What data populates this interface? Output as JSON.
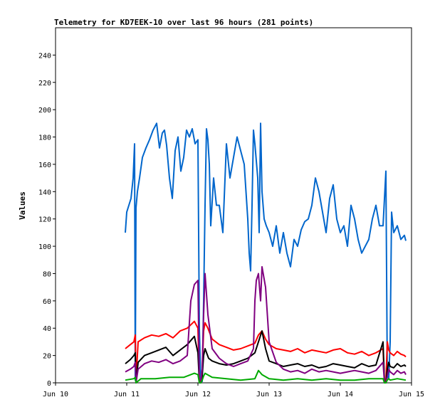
{
  "chart_data": {
    "type": "line",
    "title": "Telemetry for KD7EEK-10 over last 96 hours (281 points)",
    "ylabel": "Values",
    "xlabel": "",
    "ylim": [
      0,
      260
    ],
    "xlim": [
      0,
      5
    ],
    "x_tick_labels": [
      "Jun 10",
      "Jun 11",
      "Jun 12",
      "Jun 13",
      "Jun 14",
      "Jun 15"
    ],
    "y_ticks": [
      0,
      20,
      40,
      60,
      80,
      100,
      120,
      140,
      160,
      180,
      200,
      220,
      240
    ],
    "grid": false,
    "series": [
      {
        "color": "#0066cc",
        "x": [
          0.98,
          1.0,
          1.03,
          1.06,
          1.09,
          1.11,
          1.12,
          1.13,
          1.15,
          1.18,
          1.22,
          1.27,
          1.32,
          1.37,
          1.42,
          1.46,
          1.5,
          1.53,
          1.56,
          1.6,
          1.64,
          1.68,
          1.72,
          1.76,
          1.8,
          1.84,
          1.88,
          1.92,
          1.96,
          2.0,
          2.02,
          2.04,
          2.06,
          2.08,
          2.1,
          2.12,
          2.14,
          2.16,
          2.18,
          2.22,
          2.26,
          2.3,
          2.35,
          2.4,
          2.45,
          2.5,
          2.55,
          2.6,
          2.65,
          2.7,
          2.72,
          2.74,
          2.76,
          2.78,
          2.8,
          2.84,
          2.86,
          2.88,
          2.9,
          2.93,
          2.96,
          3.0,
          3.05,
          3.1,
          3.15,
          3.2,
          3.25,
          3.3,
          3.35,
          3.4,
          3.45,
          3.5,
          3.55,
          3.6,
          3.65,
          3.7,
          3.75,
          3.8,
          3.85,
          3.9,
          3.95,
          4.0,
          4.05,
          4.1,
          4.15,
          4.2,
          4.25,
          4.3,
          4.35,
          4.4,
          4.45,
          4.5,
          4.55,
          4.6,
          4.62,
          4.64,
          4.66,
          4.68,
          4.7,
          4.72,
          4.75,
          4.8,
          4.85,
          4.9,
          4.92
        ],
        "values": [
          110,
          125,
          130,
          135,
          150,
          175,
          2,
          128,
          140,
          150,
          165,
          172,
          178,
          185,
          190,
          172,
          183,
          185,
          174,
          150,
          135,
          170,
          180,
          155,
          165,
          185,
          180,
          186,
          175,
          178,
          40,
          1,
          1,
          60,
          130,
          186,
          178,
          160,
          115,
          150,
          130,
          130,
          110,
          175,
          150,
          165,
          180,
          170,
          160,
          120,
          95,
          82,
          130,
          185,
          175,
          150,
          110,
          190,
          140,
          120,
          115,
          110,
          100,
          115,
          95,
          110,
          95,
          85,
          105,
          100,
          112,
          118,
          120,
          130,
          150,
          140,
          125,
          110,
          135,
          145,
          120,
          110,
          115,
          100,
          130,
          120,
          105,
          95,
          100,
          105,
          120,
          130,
          115,
          115,
          135,
          155,
          5,
          3,
          30,
          125,
          110,
          115,
          105,
          108,
          104
        ]
      },
      {
        "color": "#ff0000",
        "x": [
          0.98,
          1.05,
          1.1,
          1.12,
          1.13,
          1.16,
          1.25,
          1.35,
          1.45,
          1.55,
          1.65,
          1.75,
          1.85,
          1.95,
          2.0,
          2.02,
          2.04,
          2.06,
          2.08,
          2.1,
          2.14,
          2.2,
          2.3,
          2.4,
          2.5,
          2.6,
          2.7,
          2.8,
          2.85,
          2.9,
          2.95,
          3.0,
          3.1,
          3.2,
          3.3,
          3.4,
          3.5,
          3.6,
          3.7,
          3.8,
          3.9,
          4.0,
          4.1,
          4.2,
          4.3,
          4.4,
          4.5,
          4.6,
          4.62,
          4.64,
          4.66,
          4.68,
          4.7,
          4.75,
          4.8,
          4.85,
          4.9,
          4.92
        ],
        "values": [
          25,
          28,
          30,
          35,
          1,
          30,
          33,
          35,
          34,
          36,
          33,
          38,
          40,
          45,
          40,
          1,
          1,
          10,
          38,
          44,
          40,
          32,
          28,
          26,
          24,
          25,
          27,
          29,
          35,
          38,
          32,
          28,
          25,
          24,
          23,
          25,
          22,
          24,
          23,
          22,
          24,
          25,
          22,
          21,
          23,
          20,
          22,
          25,
          1,
          1,
          30,
          24,
          22,
          20,
          23,
          21,
          20,
          19
        ]
      },
      {
        "color": "#000000",
        "x": [
          0.98,
          1.05,
          1.1,
          1.12,
          1.13,
          1.16,
          1.25,
          1.35,
          1.45,
          1.55,
          1.65,
          1.75,
          1.85,
          1.95,
          2.0,
          2.02,
          2.04,
          2.06,
          2.08,
          2.1,
          2.15,
          2.2,
          2.3,
          2.4,
          2.5,
          2.6,
          2.7,
          2.8,
          2.85,
          2.9,
          2.95,
          3.0,
          3.1,
          3.2,
          3.3,
          3.4,
          3.5,
          3.6,
          3.7,
          3.8,
          3.9,
          4.0,
          4.1,
          4.2,
          4.3,
          4.4,
          4.5,
          4.6,
          4.62,
          4.64,
          4.66,
          4.68,
          4.7,
          4.75,
          4.8,
          4.85,
          4.9,
          4.92
        ],
        "values": [
          14,
          17,
          20,
          22,
          0,
          15,
          20,
          22,
          24,
          26,
          20,
          24,
          28,
          34,
          22,
          0,
          0,
          5,
          20,
          25,
          18,
          16,
          14,
          13,
          14,
          16,
          18,
          22,
          30,
          38,
          25,
          16,
          14,
          12,
          13,
          14,
          12,
          13,
          11,
          12,
          14,
          13,
          12,
          11,
          14,
          12,
          13,
          30,
          0,
          0,
          10,
          15,
          12,
          11,
          14,
          12,
          13,
          12
        ]
      },
      {
        "color": "#800080",
        "x": [
          0.98,
          1.05,
          1.1,
          1.12,
          1.13,
          1.16,
          1.25,
          1.35,
          1.45,
          1.55,
          1.65,
          1.75,
          1.85,
          1.9,
          1.95,
          2.0,
          2.02,
          2.04,
          2.06,
          2.08,
          2.1,
          2.14,
          2.2,
          2.3,
          2.4,
          2.5,
          2.6,
          2.7,
          2.78,
          2.8,
          2.82,
          2.85,
          2.88,
          2.9,
          2.95,
          3.0,
          3.1,
          3.2,
          3.3,
          3.4,
          3.5,
          3.6,
          3.7,
          3.8,
          3.9,
          4.0,
          4.1,
          4.2,
          4.3,
          4.4,
          4.5,
          4.6,
          4.62,
          4.64,
          4.66,
          4.68,
          4.7,
          4.75,
          4.8,
          4.85,
          4.9,
          4.92
        ],
        "values": [
          8,
          10,
          12,
          15,
          0,
          10,
          14,
          16,
          15,
          17,
          14,
          16,
          20,
          60,
          72,
          75,
          0,
          0,
          10,
          50,
          80,
          50,
          25,
          18,
          14,
          12,
          14,
          16,
          25,
          60,
          75,
          80,
          60,
          85,
          70,
          30,
          15,
          10,
          8,
          9,
          7,
          10,
          8,
          9,
          8,
          7,
          8,
          9,
          8,
          7,
          9,
          15,
          0,
          0,
          5,
          10,
          8,
          6,
          9,
          7,
          8,
          6
        ]
      },
      {
        "color": "#00aa00",
        "x": [
          0.98,
          1.1,
          1.12,
          1.13,
          1.2,
          1.4,
          1.6,
          1.8,
          1.95,
          2.0,
          2.02,
          2.04,
          2.06,
          2.08,
          2.1,
          2.2,
          2.4,
          2.6,
          2.8,
          2.85,
          2.9,
          3.0,
          3.2,
          3.4,
          3.6,
          3.8,
          4.0,
          4.2,
          4.4,
          4.6,
          4.62,
          4.64,
          4.66,
          4.68,
          4.7,
          4.8,
          4.92
        ],
        "values": [
          2,
          3,
          4,
          0,
          3,
          3,
          4,
          4,
          7,
          6,
          0,
          0,
          2,
          5,
          7,
          4,
          3,
          2,
          3,
          9,
          6,
          3,
          2,
          3,
          2,
          3,
          2,
          2,
          3,
          3,
          0,
          0,
          2,
          3,
          2,
          3,
          2
        ]
      }
    ]
  }
}
